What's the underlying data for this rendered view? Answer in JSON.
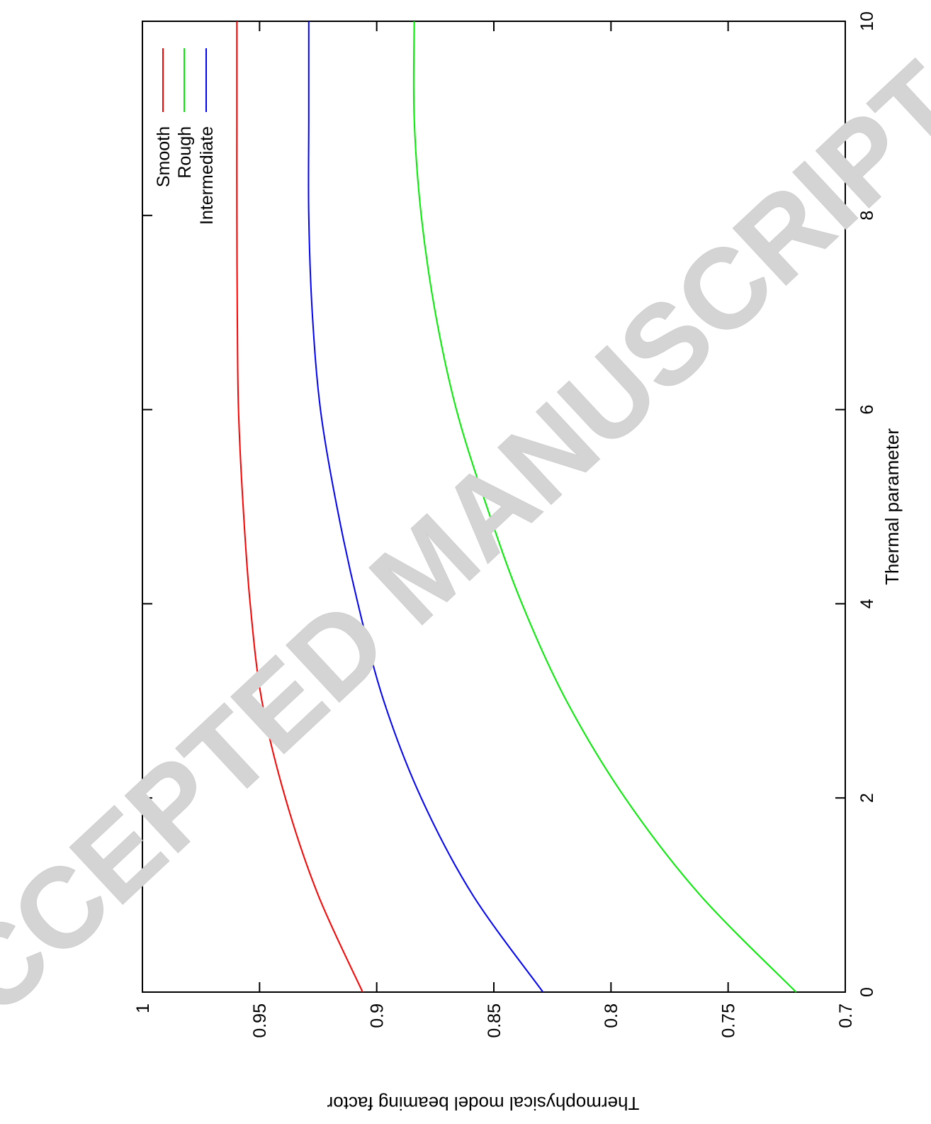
{
  "watermark": "ACCEPTED MANUSCRIPT",
  "chart_data": {
    "type": "line",
    "xlabel": "Thermal parameter",
    "ylabel": "Thermophysical model beaming factor",
    "xlim": [
      0,
      10
    ],
    "ylim": [
      0.7,
      1
    ],
    "xticks": [
      "0",
      "2",
      "4",
      "6",
      "8",
      "10"
    ],
    "yticks": [
      "0.7",
      "0.75",
      "0.8",
      "0.85",
      "0.9",
      "0.95",
      "1"
    ],
    "grid": false,
    "legend_position": "top-right",
    "orientation": "rotated 90 degrees clockwise",
    "x": [
      0,
      1,
      2,
      3,
      4,
      5,
      6,
      7,
      8,
      9,
      10
    ],
    "series": [
      {
        "name": "Smooth",
        "color": "#ff0000",
        "values": [
          0.906,
          0.925,
          0.939,
          0.949,
          0.954,
          0.957,
          0.959,
          0.9595,
          0.9597,
          0.9597,
          0.9597
        ]
      },
      {
        "name": "Rough",
        "color": "#00ee00",
        "values": [
          0.721,
          0.762,
          0.794,
          0.819,
          0.838,
          0.853,
          0.866,
          0.875,
          0.881,
          0.884,
          0.884
        ]
      },
      {
        "name": "Intermediate",
        "color": "#0000ff",
        "values": [
          0.829,
          0.859,
          0.881,
          0.897,
          0.908,
          0.917,
          0.924,
          0.9275,
          0.929,
          0.929,
          0.929
        ]
      }
    ]
  }
}
